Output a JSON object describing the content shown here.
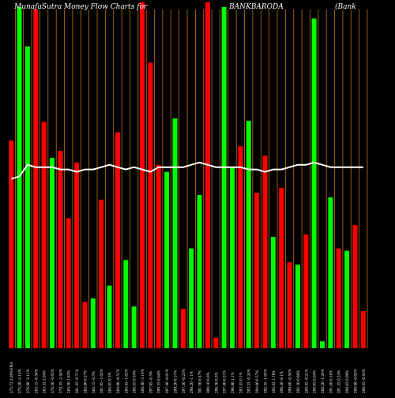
{
  "header": {
    "title_left": "MunafaSutra  Money Flow  Charts for",
    "symbol": "BANKBARODA",
    "title_right": "(Bank"
  },
  "colors": {
    "background": "#000000",
    "up": "#00ff00",
    "down": "#ff0000",
    "average_line": "#ffffff",
    "grid": "#c07010",
    "label": "#ffffff"
  },
  "chart_data": {
    "type": "bar",
    "series": [
      {
        "name": "",
        "values": [
          89.5,
          147,
          130,
          146,
          97.5,
          82,
          85,
          56,
          80,
          20,
          21.5,
          64,
          27,
          93,
          38,
          18,
          149,
          123,
          79,
          76,
          99,
          17,
          43,
          66,
          149,
          4.5,
          147,
          78,
          87,
          98,
          67,
          83,
          48,
          69,
          37,
          36,
          49,
          142,
          3,
          65,
          43,
          42,
          53,
          16
        ]
      }
    ],
    "bar_colors": [
      "down",
      "up",
      "up",
      "down",
      "down",
      "up",
      "down",
      "down",
      "down",
      "down",
      "up",
      "down",
      "up",
      "down",
      "up",
      "up",
      "down",
      "down",
      "down",
      "up",
      "up",
      "down",
      "up",
      "up",
      "down",
      "down",
      "up",
      "up",
      "down",
      "up",
      "down",
      "down",
      "up",
      "down",
      "down",
      "up",
      "down",
      "up",
      "up",
      "up",
      "down",
      "up",
      "down",
      "down"
    ],
    "average_line": [
      73,
      74,
      79,
      78,
      78,
      78,
      77,
      77,
      76,
      77,
      77,
      78,
      79,
      78,
      77,
      78,
      77,
      76,
      78,
      78,
      78,
      78,
      79,
      80,
      79,
      78,
      78,
      78,
      78,
      77,
      77,
      76,
      77,
      77,
      78,
      79,
      79,
      80,
      79,
      78,
      78,
      78,
      78,
      78
    ],
    "x_labels": [
      "275.72 2.89%EMA",
      "275.20 -5.14%",
      "276.00 -2.11%",
      "282.15 -0.56%",
      "283.35 2.04%",
      "276.30 -0.63%",
      "279.35 -2.48%",
      "285.50 1.63%",
      "281.35 -0.71%",
      "282.80 0.27%",
      "282.15 -0.5%",
      "281.95 -1.02%",
      "284.85 0.3%",
      "284.00 -0.51%",
      "285.45 -1.02%",
      "288.55 0.35%",
      "288.40 -3.14%",
      "297.85 -0.5%",
      "299.35 0.66%",
      "297.40 -0.61%",
      "299.20 0.57%",
      "297.50 -0.23%",
      "298.20 -1.1%",
      "301.50 0.47%",
      "300.10 0.6%",
      "298.30 0.3%",
      "297.40 0.21%",
      "296.80 1.1%",
      "293.55 0.1%",
      "293.25 -0.24%",
      "294.00 0.57%",
      "292.35 -1.05%",
      "295.45 1.78%",
      "290.30 -0.1%",
      "290.60 -0.58%",
      "292.30 0.98%",
      "289.45 -0.21%",
      "290.05 0.64%",
      "288.20 -1.24%",
      "291.80 0.16%",
      "291.35 0.24%",
      "290.65 0.09%",
      "290.40 -0.02%",
      "290.35 -0.43%"
    ],
    "ylim": [
      0,
      150
    ],
    "grid": true
  }
}
